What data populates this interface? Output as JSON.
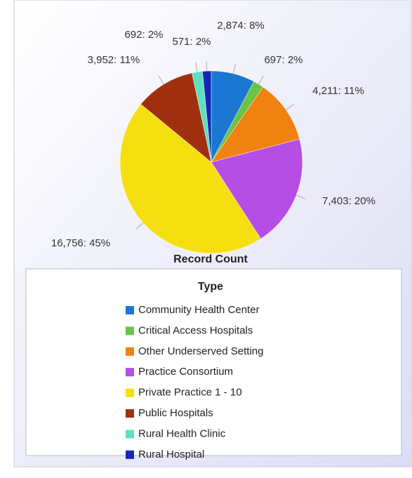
{
  "chart_data": {
    "type": "pie",
    "axis_label": "Record Count",
    "legend_title": "Type",
    "categories": [
      "Community Health Center",
      "Critical Access Hospitals",
      "Other Underserved Setting",
      "Practice Consortium",
      "Private Practice 1 - 10",
      "Public Hospitals",
      "Rural Health Clinic",
      "Rural Hospital"
    ],
    "values": [
      2874,
      697,
      4211,
      7403,
      16756,
      3952,
      692,
      571
    ],
    "value_labels": [
      "2,874: 8%",
      "697: 2%",
      "4,211: 11%",
      "7,403: 20%",
      "16,756: 45%",
      "3,952: 11%",
      "692: 2%",
      "571: 2%"
    ],
    "colors": [
      "#1a78d2",
      "#6cc24a",
      "#f0820f",
      "#b64ee6",
      "#f5df10",
      "#a0300f",
      "#5ee0c0",
      "#1528b4"
    ]
  }
}
